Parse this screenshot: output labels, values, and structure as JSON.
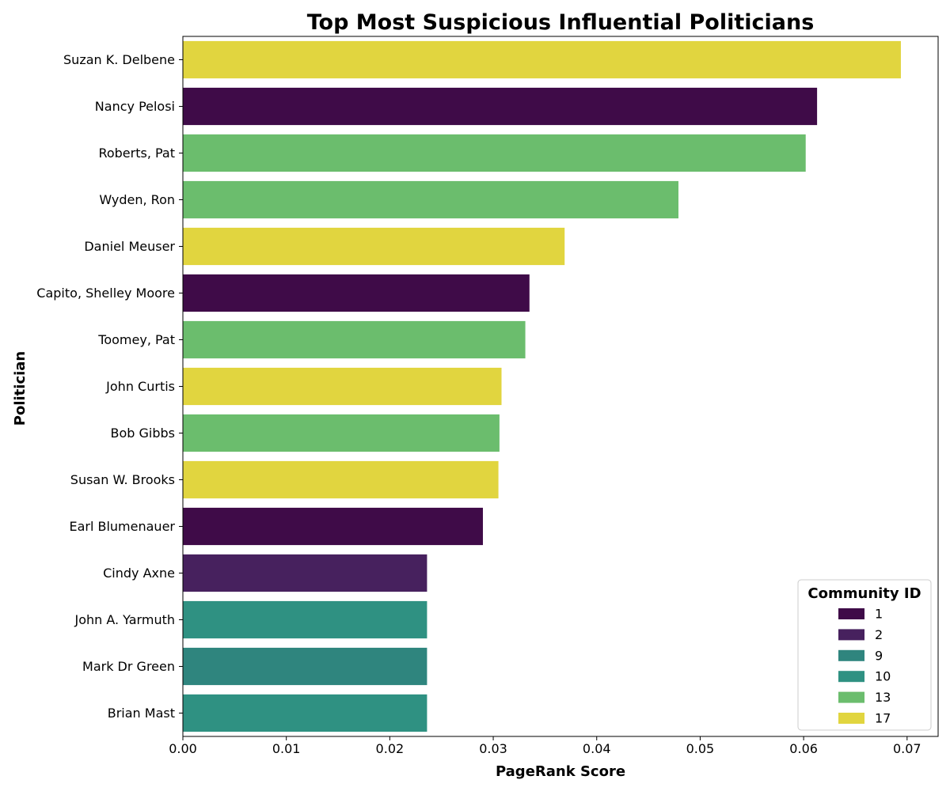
{
  "chart_data": {
    "type": "bar",
    "orientation": "horizontal",
    "title": "Top Most Suspicious Influential Politicians",
    "xlabel": "PageRank Score",
    "ylabel": "Politician",
    "xlim": [
      0,
      0.073
    ],
    "xticks": [
      "0.00",
      "0.01",
      "0.02",
      "0.03",
      "0.04",
      "0.05",
      "0.06",
      "0.07"
    ],
    "grid": false,
    "categories": [
      "Suzan K. Delbene",
      "Nancy Pelosi",
      "Roberts, Pat",
      "Wyden, Ron",
      "Daniel Meuser",
      "Capito, Shelley Moore",
      "Toomey, Pat",
      "John Curtis",
      "Bob Gibbs",
      "Susan W. Brooks",
      "Earl Blumenauer",
      "Cindy Axne",
      "John A. Yarmuth",
      "Mark Dr Green",
      "Brian Mast"
    ],
    "values": [
      0.0694,
      0.0613,
      0.0602,
      0.0479,
      0.0369,
      0.0335,
      0.0331,
      0.0308,
      0.0306,
      0.0305,
      0.029,
      0.0236,
      0.0236,
      0.0236,
      0.0236
    ],
    "communities": [
      "17",
      "1",
      "13",
      "13",
      "17",
      "1",
      "13",
      "17",
      "13",
      "17",
      "1",
      "2",
      "10",
      "9",
      "10"
    ],
    "legend": {
      "title": "Community ID",
      "placement": "lower-right",
      "entries": [
        {
          "label": "1",
          "color": "#3f0b48"
        },
        {
          "label": "2",
          "color": "#47215e"
        },
        {
          "label": "9",
          "color": "#2f857e"
        },
        {
          "label": "10",
          "color": "#2f9182"
        },
        {
          "label": "13",
          "color": "#6bbd6d"
        },
        {
          "label": "17",
          "color": "#e1d53f"
        }
      ]
    }
  }
}
